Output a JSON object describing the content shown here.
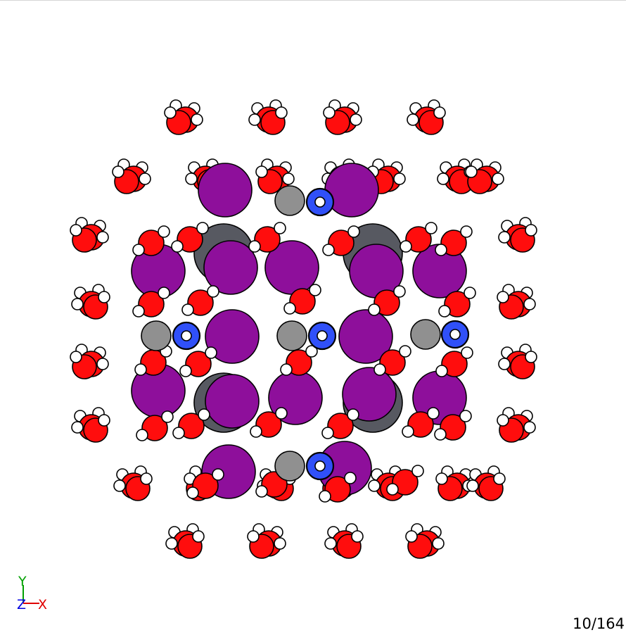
{
  "viewer": {
    "frame_counter": "10/164",
    "axes": {
      "y": "Y",
      "z": "Z",
      "x": "X"
    }
  },
  "colors": {
    "oxygen": "#ff0d0d",
    "hydrogen": "#ffffff",
    "iodine": "#8e0f9b",
    "carbon": "#909090",
    "lead": "#575961",
    "nitrogen": "#3050f8",
    "axis_x": "#e00000",
    "axis_y": "#00a000",
    "axis_z": "#0000e0"
  },
  "elements": [
    "O",
    "H",
    "I",
    "C",
    "Pb",
    "N"
  ]
}
